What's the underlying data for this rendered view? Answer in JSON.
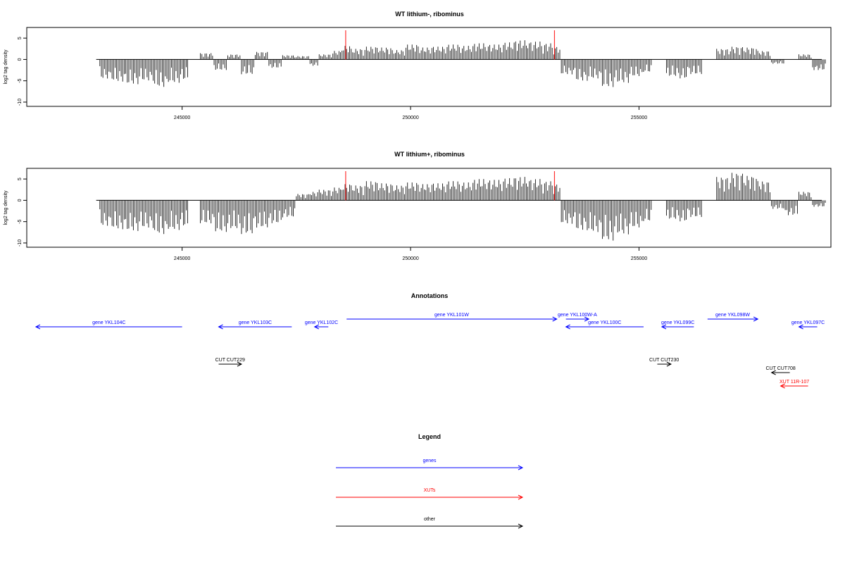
{
  "chart_data": [
    {
      "type": "bar",
      "title": "WT lithium-, ribominus",
      "ylabel": "log2 tag density",
      "xlabel": "",
      "xlim": [
        241600,
        259200
      ],
      "ylim": [
        -11,
        7.5
      ],
      "yticks": [
        5,
        0,
        -5,
        -10
      ],
      "xticks": [
        245000,
        250000,
        255000
      ],
      "grid": false,
      "baseline": 0,
      "markers": [
        {
          "x": 248580,
          "color": "#ff3030"
        },
        {
          "x": 253150,
          "color": "#ff3030"
        }
      ],
      "series": [
        {
          "x": [
            243200,
            243500,
            243800,
            244100,
            244400,
            244700,
            245000,
            245150,
            245400,
            245700,
            246000,
            246300,
            246600,
            246900,
            247200,
            247500,
            247800,
            248000,
            248300,
            248500,
            248700,
            249000,
            249300,
            249600,
            249900,
            250200,
            250500,
            250800,
            251100,
            251400,
            251700,
            252000,
            252300,
            252600,
            252900,
            253100,
            253300,
            253600,
            253900,
            254200,
            254500,
            254800,
            255100,
            255300,
            255600,
            255900,
            256100,
            256400,
            256700,
            257000,
            257300,
            257600,
            257900,
            258200,
            258500,
            258800
          ],
          "values": [
            -4.5,
            -5.2,
            -5.8,
            -5.0,
            -6.5,
            -5.5,
            -4.8,
            0,
            1.5,
            -2.5,
            1.2,
            -3.5,
            1.8,
            -2.0,
            1.0,
            0.8,
            -1.5,
            1.2,
            2.0,
            3.2,
            2.5,
            3.0,
            2.8,
            2.2,
            3.5,
            2.8,
            3.0,
            3.5,
            3.2,
            3.8,
            3.5,
            4.0,
            4.5,
            4.2,
            3.8,
            3.0,
            -3.5,
            -5.0,
            -4.5,
            -6.5,
            -5.5,
            -4.0,
            -3.0,
            0,
            -4.0,
            -4.5,
            -3.5,
            0,
            2.5,
            3.0,
            2.8,
            2.0,
            -1.0,
            0,
            1.2,
            -2.5
          ]
        }
      ]
    },
    {
      "type": "bar",
      "title": "WT lithium+, ribominus",
      "ylabel": "log2 tag density",
      "xlabel": "",
      "xlim": [
        241600,
        259200
      ],
      "ylim": [
        -11,
        7.5
      ],
      "yticks": [
        5,
        0,
        -5,
        -10
      ],
      "xticks": [
        245000,
        250000,
        255000
      ],
      "grid": false,
      "baseline": 0,
      "markers": [
        {
          "x": 248580,
          "color": "#ff3030"
        },
        {
          "x": 253150,
          "color": "#ff3030"
        }
      ],
      "series": [
        {
          "x": [
            243200,
            243500,
            243800,
            244100,
            244400,
            244700,
            245000,
            245150,
            245400,
            245700,
            246000,
            246300,
            246600,
            246900,
            247200,
            247500,
            247800,
            248000,
            248300,
            248500,
            248700,
            249000,
            249300,
            249600,
            249900,
            250200,
            250500,
            250800,
            251100,
            251400,
            251700,
            252000,
            252300,
            252600,
            252900,
            253100,
            253300,
            253600,
            253900,
            254200,
            254500,
            254800,
            255100,
            255300,
            255600,
            255900,
            256100,
            256400,
            256700,
            257000,
            257300,
            257600,
            257900,
            258200,
            258500,
            258800
          ],
          "values": [
            -6.0,
            -6.8,
            -7.2,
            -6.5,
            -8.0,
            -7.0,
            -6.2,
            0,
            -5.5,
            -7.5,
            -6.8,
            -8.0,
            -6.5,
            -5.5,
            -4.0,
            1.5,
            2.0,
            2.5,
            3.0,
            3.8,
            3.5,
            4.5,
            4.0,
            3.5,
            4.2,
            3.8,
            4.0,
            4.5,
            4.2,
            5.0,
            4.8,
            5.2,
            5.5,
            5.0,
            4.5,
            3.8,
            -5.5,
            -7.0,
            -7.5,
            -9.5,
            -8.0,
            -6.5,
            -5.0,
            0,
            -4.5,
            -5.0,
            -4.0,
            0,
            5.5,
            6.5,
            5.8,
            4.5,
            -2.0,
            -3.5,
            2.0,
            -1.5
          ]
        }
      ]
    }
  ],
  "annotations": {
    "title": "Annotations",
    "items": [
      {
        "label": "gene YKL104C",
        "color": "#0000ff",
        "start": 241800,
        "end": 245000,
        "lane": 1
      },
      {
        "label": "gene YKL103C",
        "color": "#0000ff",
        "start": 245800,
        "end": 247400,
        "lane": 1
      },
      {
        "label": "gene YKL102C",
        "color": "#0000ff",
        "start": 247900,
        "end": 248200,
        "lane": 1
      },
      {
        "label": "gene YKL101W",
        "color": "#0000ff",
        "start": 248600,
        "end": 253200,
        "lane": 0
      },
      {
        "label": "gene YKL100W-A",
        "color": "#0000ff",
        "start": 253400,
        "end": 253900,
        "lane": 0
      },
      {
        "label": "gene YKL100C",
        "color": "#0000ff",
        "start": 253400,
        "end": 255100,
        "lane": 1
      },
      {
        "label": "gene YKL099C",
        "color": "#0000ff",
        "start": 255500,
        "end": 256200,
        "lane": 1
      },
      {
        "label": "gene YKL098W",
        "color": "#0000ff",
        "start": 256500,
        "end": 257600,
        "lane": 0
      },
      {
        "label": "gene YKL097C",
        "color": "#0000ff",
        "start": 258500,
        "end": 258900,
        "lane": 1
      },
      {
        "label": "CUT CUT229",
        "color": "#000000",
        "start": 245800,
        "end": 246300,
        "lane": 2
      },
      {
        "label": "CUT CUT230",
        "color": "#000000",
        "start": 255400,
        "end": 255700,
        "lane": 2
      },
      {
        "label": "CUT CUT708",
        "color": "#000000",
        "start": 257900,
        "end": 258300,
        "lane": 3
      },
      {
        "label": "XUT 11R-107",
        "color": "#ff0000",
        "start": 258100,
        "end": 258700,
        "lane": 4
      }
    ]
  },
  "legend": {
    "title": "Legend",
    "items": [
      {
        "label": "genes",
        "color": "#0000ff"
      },
      {
        "label": "XUTs",
        "color": "#ff0000"
      },
      {
        "label": "other",
        "color": "#000000"
      }
    ]
  }
}
